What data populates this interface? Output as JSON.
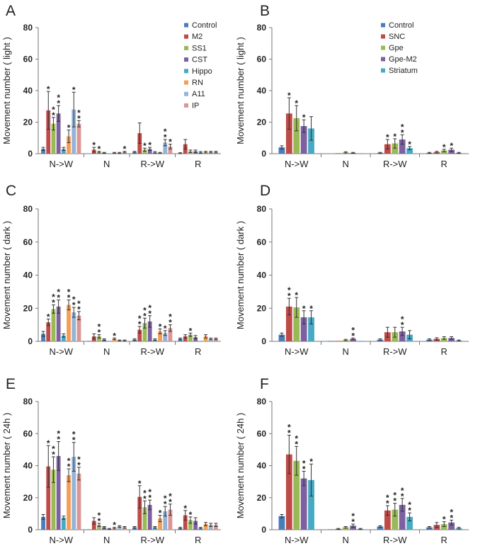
{
  "colors": {
    "Control": "#4a7ebb",
    "M2": "#be4b48",
    "SS1": "#98b954",
    "CST": "#7d60a0",
    "Hippo": "#46aac4",
    "RN": "#f59d56",
    "A11": "#95b3d7",
    "IP": "#d99694",
    "SNC": "#be4b48",
    "Gpe": "#98b954",
    "Gpe-M2": "#7d60a0",
    "Striatum": "#46aac4"
  },
  "chart_data": [
    {
      "panel": "A",
      "type": "bar",
      "ylabel": "Movement number ( light )",
      "ylim": [
        0,
        80
      ],
      "yticks": [
        0,
        20,
        40,
        60,
        80
      ],
      "categories": [
        "N->W",
        "N",
        "R->W",
        "R"
      ],
      "series": [
        {
          "name": "Control",
          "values": [
            3,
            0.2,
            1,
            0.3
          ],
          "errors": [
            1,
            0.2,
            0.5,
            0.3
          ],
          "stars": [
            "",
            "",
            "",
            ""
          ]
        },
        {
          "name": "M2",
          "values": [
            27.5,
            2.5,
            13,
            6
          ],
          "errors": [
            12,
            1.5,
            6.5,
            3
          ],
          "stars": [
            "*",
            "*",
            "",
            ""
          ]
        },
        {
          "name": "SS1",
          "values": [
            19,
            1,
            2.5,
            1.5
          ],
          "errors": [
            4,
            0.5,
            1,
            0.8
          ],
          "stars": [
            "**",
            "*",
            "*",
            ""
          ]
        },
        {
          "name": "CST",
          "values": [
            25.5,
            0.5,
            3,
            1.5
          ],
          "errors": [
            5,
            0.3,
            1,
            0.8
          ],
          "stars": [
            "**",
            "",
            "*",
            ""
          ]
        },
        {
          "name": "Hippo",
          "values": [
            3,
            0.3,
            0.8,
            0.8
          ],
          "errors": [
            1,
            0.2,
            0.5,
            0.5
          ],
          "stars": [
            "",
            "",
            "",
            ""
          ]
        },
        {
          "name": "RN",
          "values": [
            11,
            0.5,
            0.5,
            1
          ],
          "errors": [
            4,
            0.3,
            0.3,
            0.5
          ],
          "stars": [
            "*",
            "",
            "",
            ""
          ]
        },
        {
          "name": "A11",
          "values": [
            28,
            0.5,
            7,
            1
          ],
          "errors": [
            11,
            0.3,
            2,
            0.5
          ],
          "stars": [
            "*",
            "",
            "**",
            ""
          ]
        },
        {
          "name": "IP",
          "values": [
            19,
            1,
            4.5,
            1
          ],
          "errors": [
            2,
            0.5,
            1.5,
            0.5
          ],
          "stars": [
            "**",
            "*",
            "*",
            ""
          ]
        }
      ]
    },
    {
      "panel": "B",
      "type": "bar",
      "ylabel": "Movement number ( light )",
      "ylim": [
        0,
        80
      ],
      "yticks": [
        0,
        20,
        40,
        60,
        80
      ],
      "categories": [
        "N->W",
        "N",
        "R->W",
        "R"
      ],
      "series": [
        {
          "name": "Control",
          "values": [
            4,
            0.2,
            0.5,
            0.5
          ],
          "errors": [
            1,
            0.2,
            0.3,
            0.3
          ],
          "stars": [
            "",
            "",
            "",
            ""
          ]
        },
        {
          "name": "SNC",
          "values": [
            25.5,
            0.3,
            6,
            1
          ],
          "errors": [
            10,
            0.2,
            3,
            0.5
          ],
          "stars": [
            "*",
            "",
            "*",
            ""
          ]
        },
        {
          "name": "Gpe",
          "values": [
            22.5,
            0.8,
            6.5,
            2
          ],
          "errors": [
            8,
            0.4,
            3,
            0.8
          ],
          "stars": [
            "*",
            "",
            "*",
            "*"
          ]
        },
        {
          "name": "Gpe-M2",
          "values": [
            17.5,
            0.5,
            9,
            2.5
          ],
          "errors": [
            4,
            0.3,
            3,
            1
          ],
          "stars": [
            "*",
            "",
            "**",
            "*"
          ]
        },
        {
          "name": "Striatum",
          "values": [
            16,
            0.3,
            3.5,
            0.5
          ],
          "errors": [
            7.5,
            0.2,
            1,
            0.3
          ],
          "stars": [
            "",
            "",
            "*",
            ""
          ]
        }
      ]
    },
    {
      "panel": "C",
      "type": "bar",
      "ylabel": "Movement number ( dark )",
      "ylim": [
        0,
        80
      ],
      "yticks": [
        0,
        20,
        40,
        60,
        80
      ],
      "categories": [
        "N->W",
        "N",
        "R->W",
        "R"
      ],
      "series": [
        {
          "name": "Control",
          "values": [
            4.5,
            0.3,
            1,
            1.5
          ],
          "errors": [
            1.5,
            0.2,
            0.5,
            0.5
          ],
          "stars": [
            "",
            "",
            "",
            ""
          ]
        },
        {
          "name": "M2",
          "values": [
            11.5,
            3,
            7,
            3
          ],
          "errors": [
            2,
            1.5,
            2,
            1
          ],
          "stars": [
            "*",
            "",
            "**",
            ""
          ]
        },
        {
          "name": "SS1",
          "values": [
            19.5,
            3,
            11,
            4
          ],
          "errors": [
            2.5,
            1,
            3,
            1
          ],
          "stars": [
            "**",
            "**",
            "**",
            "*"
          ]
        },
        {
          "name": "CST",
          "values": [
            21,
            1,
            12,
            2.5
          ],
          "errors": [
            4,
            0.5,
            3.5,
            1
          ],
          "stars": [
            "**",
            "",
            "**",
            ""
          ]
        },
        {
          "name": "Hippo",
          "values": [
            3.5,
            0.3,
            1,
            0.3
          ],
          "errors": [
            1,
            0.2,
            0.5,
            0.2
          ],
          "stars": [
            "",
            "",
            "",
            ""
          ]
        },
        {
          "name": "RN",
          "values": [
            22,
            1.5,
            6,
            3
          ],
          "errors": [
            3,
            0.5,
            1.5,
            1
          ],
          "stars": [
            "**",
            "*",
            "*",
            ""
          ]
        },
        {
          "name": "A11",
          "values": [
            17.5,
            0.5,
            5,
            1.5
          ],
          "errors": [
            3,
            0.3,
            1.5,
            0.5
          ],
          "stars": [
            "**",
            "",
            "*",
            ""
          ]
        },
        {
          "name": "IP",
          "values": [
            15.5,
            0.5,
            8,
            1.5
          ],
          "errors": [
            2.5,
            0.3,
            2,
            0.5
          ],
          "stars": [
            "**",
            "",
            "**",
            ""
          ]
        }
      ]
    },
    {
      "panel": "D",
      "type": "bar",
      "ylabel": "Movement number ( dark )",
      "ylim": [
        0,
        80
      ],
      "yticks": [
        0,
        20,
        40,
        60,
        80
      ],
      "categories": [
        "N->W",
        "N",
        "R->W",
        "R"
      ],
      "series": [
        {
          "name": "Control",
          "values": [
            4,
            0.3,
            1,
            1
          ],
          "errors": [
            1,
            0.2,
            0.5,
            0.5
          ],
          "stars": [
            "",
            "",
            "",
            ""
          ]
        },
        {
          "name": "SNC",
          "values": [
            21,
            0.3,
            5.5,
            1.5
          ],
          "errors": [
            5,
            0.2,
            3,
            0.7
          ],
          "stars": [
            "**",
            "",
            "",
            ""
          ]
        },
        {
          "name": "Gpe",
          "values": [
            20.5,
            0.8,
            5.5,
            2
          ],
          "errors": [
            6,
            0.4,
            3,
            0.8
          ],
          "stars": [
            "*",
            "",
            "",
            ""
          ]
        },
        {
          "name": "Gpe-M2",
          "values": [
            14.5,
            1.5,
            6,
            2
          ],
          "errors": [
            4,
            0.5,
            2.5,
            0.8
          ],
          "stars": [
            "*",
            "**",
            "**",
            ""
          ]
        },
        {
          "name": "Striatum",
          "values": [
            14.5,
            0.3,
            4,
            0.5
          ],
          "errors": [
            4,
            0.2,
            2.5,
            0.3
          ],
          "stars": [
            "*",
            "",
            "",
            ""
          ]
        }
      ]
    },
    {
      "panel": "E",
      "type": "bar",
      "ylabel": "Movement number ( 24h )",
      "ylim": [
        0,
        80
      ],
      "yticks": [
        0,
        20,
        40,
        60,
        80
      ],
      "categories": [
        "N->W",
        "N",
        "R->W",
        "R"
      ],
      "series": [
        {
          "name": "Control",
          "values": [
            8,
            0.3,
            1.5,
            1
          ],
          "errors": [
            1.5,
            0.2,
            0.5,
            0.5
          ],
          "stars": [
            "",
            "",
            "",
            ""
          ]
        },
        {
          "name": "M2",
          "values": [
            39.5,
            5.5,
            20.5,
            9
          ],
          "errors": [
            13,
            2,
            7,
            3
          ],
          "stars": [
            "*",
            "",
            "*",
            "*"
          ]
        },
        {
          "name": "SS1",
          "values": [
            37.5,
            3,
            14,
            6
          ],
          "errors": [
            8,
            1,
            4,
            2
          ],
          "stars": [
            "**",
            "**",
            "**",
            "*"
          ]
        },
        {
          "name": "CST",
          "values": [
            46,
            1.5,
            15.5,
            5.5
          ],
          "errors": [
            9,
            0.5,
            3,
            2
          ],
          "stars": [
            "**",
            "",
            "**",
            ""
          ]
        },
        {
          "name": "Hippo",
          "values": [
            7.5,
            0.5,
            1.5,
            1
          ],
          "errors": [
            1,
            0.3,
            0.5,
            0.5
          ],
          "stars": [
            "",
            "",
            "",
            ""
          ]
        },
        {
          "name": "RN",
          "values": [
            34,
            1,
            7,
            3.5
          ],
          "errors": [
            4,
            0.5,
            2,
            1
          ],
          "stars": [
            "**",
            "*",
            "*",
            ""
          ]
        },
        {
          "name": "A11",
          "values": [
            45.5,
            2,
            11.5,
            3
          ],
          "errors": [
            9,
            0.5,
            3,
            1
          ],
          "stars": [
            "**",
            "",
            "**",
            ""
          ]
        },
        {
          "name": "IP",
          "values": [
            35,
            1.5,
            12.5,
            3
          ],
          "errors": [
            4,
            0.5,
            3.5,
            1
          ],
          "stars": [
            "**",
            "",
            "**",
            ""
          ]
        }
      ]
    },
    {
      "panel": "F",
      "type": "bar",
      "ylabel": "Movement number ( 24h )",
      "ylim": [
        0,
        80
      ],
      "yticks": [
        0,
        20,
        40,
        60,
        80
      ],
      "categories": [
        "N->W",
        "N",
        "R->W",
        "R"
      ],
      "series": [
        {
          "name": "Control",
          "values": [
            8.5,
            0.3,
            2,
            1.5
          ],
          "errors": [
            1,
            0.2,
            0.5,
            0.5
          ],
          "stars": [
            "",
            "",
            "",
            ""
          ]
        },
        {
          "name": "SNC",
          "values": [
            47,
            0.5,
            12,
            3
          ],
          "errors": [
            12,
            0.3,
            3,
            1.5
          ],
          "stars": [
            "**",
            "",
            "**",
            ""
          ]
        },
        {
          "name": "Gpe",
          "values": [
            43,
            1.5,
            12.5,
            3.5
          ],
          "errors": [
            9,
            0.5,
            4,
            1.5
          ],
          "stars": [
            "**",
            "",
            "**",
            "*"
          ]
        },
        {
          "name": "Gpe-M2",
          "values": [
            32,
            2.5,
            15.5,
            4.5
          ],
          "errors": [
            4.5,
            1,
            4,
            1.5
          ],
          "stars": [
            "**",
            "**",
            "**",
            "**"
          ]
        },
        {
          "name": "Striatum",
          "values": [
            31,
            0.5,
            8,
            1
          ],
          "errors": [
            10,
            0.3,
            2.5,
            0.5
          ],
          "stars": [
            "*",
            "",
            "**",
            ""
          ]
        }
      ]
    }
  ]
}
